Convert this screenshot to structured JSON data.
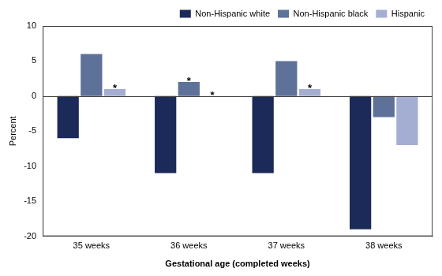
{
  "chart_data": {
    "type": "bar",
    "categories": [
      "35 weeks",
      "36 weeks",
      "37 weeks",
      "38 weeks"
    ],
    "series": [
      {
        "name": "Non-Hispanic white",
        "color": "#1b2a58",
        "values": [
          -6,
          -11,
          -11,
          -19
        ]
      },
      {
        "name": "Non-Hispanic black",
        "color": "#5e7199",
        "values": [
          6,
          2,
          5,
          -3
        ],
        "annotations": [
          null,
          "*",
          null,
          null
        ]
      },
      {
        "name": "Hispanic",
        "color": "#a4aed3",
        "values": [
          1,
          0,
          1,
          -7
        ],
        "annotations": [
          "*",
          "*",
          "*",
          null
        ]
      }
    ],
    "xlabel": "Gestational age (completed weeks)",
    "ylabel": "Percent",
    "ylim": [
      -20,
      10
    ],
    "yticks": [
      -20,
      -15,
      -10,
      -5,
      0,
      5,
      10
    ],
    "grid": false,
    "legend": "top-right"
  }
}
